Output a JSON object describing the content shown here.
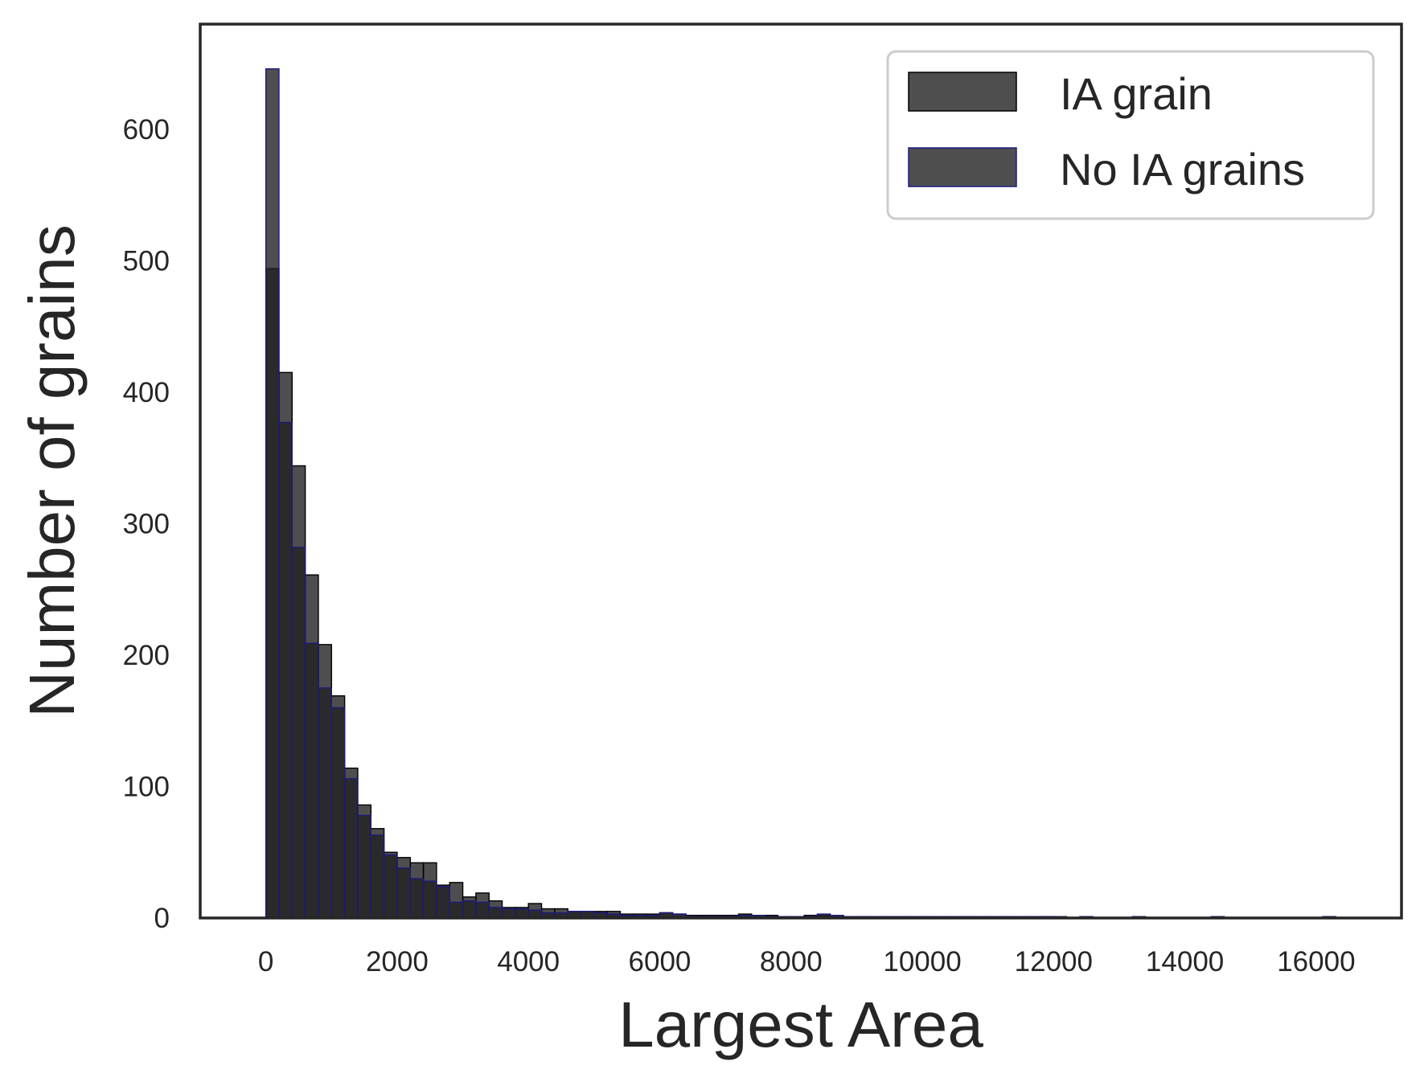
{
  "chart_data": {
    "type": "bar",
    "subtype": "histogram-overlay",
    "xlabel": "Largest Area",
    "ylabel": "Number of grains",
    "xlim": [
      -1000,
      17300
    ],
    "ylim": [
      0,
      680
    ],
    "xticks": [
      0,
      2000,
      4000,
      6000,
      8000,
      10000,
      12000,
      14000,
      16000
    ],
    "yticks": [
      0,
      100,
      200,
      300,
      400,
      500,
      600
    ],
    "grid": false,
    "legend": {
      "placement": "top-right",
      "entries": [
        "IA grain",
        "No IA grains"
      ]
    },
    "bin_start": 0,
    "bin_width": 200,
    "series": [
      {
        "name": "IA grain",
        "fill": "#222222",
        "edge": "#000000",
        "opacity": 0.8,
        "values": [
          494,
          415,
          344,
          261,
          208,
          169,
          114,
          86,
          68,
          50,
          46,
          42,
          42,
          25,
          27,
          16,
          19,
          13,
          8,
          8,
          11,
          7,
          7,
          5,
          5,
          5,
          5,
          3,
          3,
          3,
          4,
          3,
          2,
          2,
          2,
          2,
          3,
          2,
          2,
          1,
          1,
          2,
          2,
          1,
          1,
          1,
          1,
          1,
          1,
          1,
          1,
          1,
          1,
          1,
          1,
          1,
          1,
          1,
          1,
          1,
          1
        ]
      },
      {
        "name": "No IA grains",
        "fill": "#222222",
        "edge": "#1a1a80",
        "opacity": 0.8,
        "values": [
          646,
          377,
          282,
          209,
          175,
          160,
          106,
          78,
          63,
          48,
          38,
          30,
          28,
          24,
          12,
          13,
          12,
          8,
          7,
          7,
          6,
          4,
          4,
          5,
          5,
          4,
          3,
          2,
          2,
          2,
          4,
          3,
          1,
          1,
          1,
          1,
          2,
          2,
          1,
          1,
          1,
          1,
          3,
          2,
          1,
          1,
          1,
          1,
          1,
          1,
          1,
          1,
          1,
          1,
          1,
          1,
          1,
          1,
          1,
          1,
          1
        ]
      }
    ],
    "sparse_tail": [
      {
        "x": 11800,
        "value": 1
      },
      {
        "x": 12400,
        "value": 1
      },
      {
        "x": 13200,
        "value": 1
      },
      {
        "x": 14400,
        "value": 1
      },
      {
        "x": 16100,
        "value": 1
      }
    ]
  }
}
